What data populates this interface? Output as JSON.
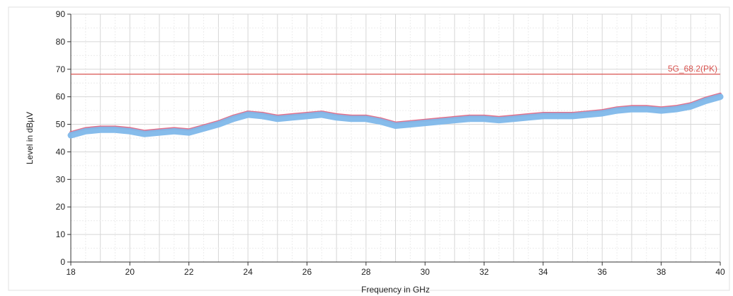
{
  "chart_data": {
    "type": "line",
    "xlabel": "Frequency in GHz",
    "ylabel": "Level in dBµV",
    "xlim": [
      18,
      40
    ],
    "ylim": [
      0,
      90
    ],
    "x_ticks": [
      "18",
      "20",
      "22",
      "24",
      "26",
      "28",
      "30",
      "32",
      "34",
      "36",
      "38",
      "40"
    ],
    "y_ticks": [
      "0",
      "10",
      "20",
      "30",
      "40",
      "50",
      "60",
      "70",
      "80",
      "90"
    ],
    "grid": true,
    "limit_line": {
      "label": "5G_68.2(PK)",
      "value": 68.2,
      "color": "#d9534f"
    },
    "series": [
      {
        "color": "#7fb8ea",
        "x": [
          18,
          18.5,
          19,
          19.5,
          20,
          20.5,
          21,
          21.5,
          22,
          22.5,
          23,
          23.5,
          24,
          24.5,
          25,
          25.5,
          26,
          26.5,
          27,
          27.5,
          28,
          28.5,
          29,
          29.5,
          30,
          30.5,
          31,
          31.5,
          32,
          32.5,
          33,
          33.5,
          34,
          34.5,
          35,
          35.5,
          36,
          36.5,
          37,
          37.5,
          38,
          38.5,
          39,
          39.5,
          40
        ],
        "y": [
          46,
          47.5,
          48,
          48,
          47.5,
          46.5,
          47,
          47.5,
          47,
          48.5,
          50,
          52,
          53.5,
          53,
          52,
          52.5,
          53,
          53.5,
          52.5,
          52,
          52,
          51,
          49.5,
          50,
          50.5,
          51,
          51.5,
          52,
          52,
          51.5,
          52,
          52.5,
          53,
          53,
          53,
          53.5,
          54,
          55,
          55.5,
          55.5,
          55,
          55.5,
          56.5,
          58.5,
          60
        ]
      },
      {
        "color": "#e0607e",
        "x": [
          18,
          18.5,
          19,
          19.5,
          20,
          20.5,
          21,
          21.5,
          22,
          22.5,
          23,
          23.5,
          24,
          24.5,
          25,
          25.5,
          26,
          26.5,
          27,
          27.5,
          28,
          28.5,
          29,
          29.5,
          30,
          30.5,
          31,
          31.5,
          32,
          32.5,
          33,
          33.5,
          34,
          34.5,
          35,
          35.5,
          36,
          36.5,
          37,
          37.5,
          38,
          38.5,
          39,
          39.5,
          40
        ],
        "y": [
          47,
          48.5,
          49,
          49,
          48.5,
          47.5,
          48,
          48.5,
          48,
          49.5,
          51,
          53,
          54.5,
          54,
          53,
          53.5,
          54,
          54.5,
          53.5,
          53,
          53,
          52,
          50.5,
          51,
          51.5,
          52,
          52.5,
          53,
          53,
          52.5,
          53,
          53.5,
          54,
          54,
          54,
          54.5,
          55,
          56,
          56.5,
          56.5,
          56,
          56.5,
          57.5,
          59.5,
          61
        ]
      }
    ]
  }
}
